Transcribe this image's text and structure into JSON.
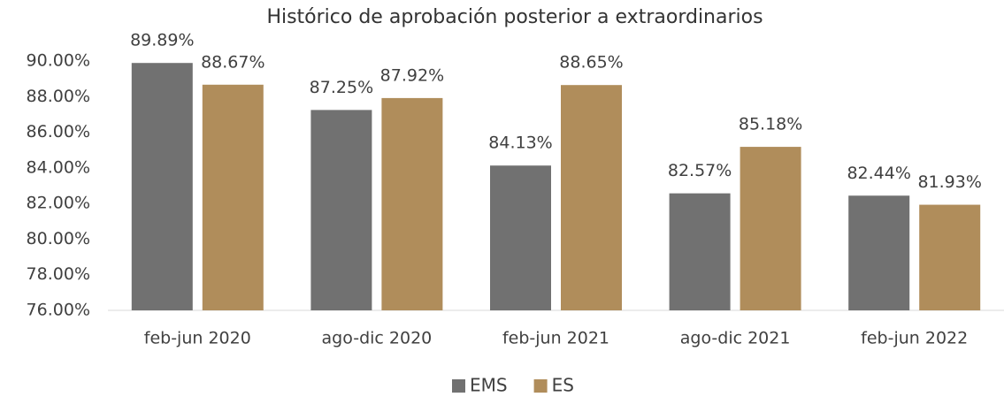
{
  "chart_data": {
    "type": "bar",
    "title": "Histórico de aprobación posterior a extraordinarios",
    "categories": [
      "feb-jun 2020",
      "ago-dic 2020",
      "feb-jun 2021",
      "ago-dic 2021",
      "feb-jun 2022"
    ],
    "series": [
      {
        "name": "EMS",
        "color": "#717171",
        "values": [
          89.89,
          87.25,
          84.13,
          82.57,
          82.44
        ],
        "value_labels": [
          "89.89%",
          "87.25%",
          "84.13%",
          "82.57%",
          "82.44%"
        ]
      },
      {
        "name": "ES",
        "color": "#b08d5b",
        "values": [
          88.67,
          87.92,
          88.65,
          85.18,
          81.93
        ],
        "value_labels": [
          "88.67%",
          "87.92%",
          "88.65%",
          "85.18%",
          "81.93%"
        ]
      }
    ],
    "ylim": [
      76,
      90
    ],
    "yticks": [
      {
        "value": 76,
        "label": "76.00%"
      },
      {
        "value": 78,
        "label": "78.00%"
      },
      {
        "value": 80,
        "label": "80.00%"
      },
      {
        "value": 82,
        "label": "82.00%"
      },
      {
        "value": 84,
        "label": "84.00%"
      },
      {
        "value": 86,
        "label": "86.00%"
      },
      {
        "value": 88,
        "label": "88.00%"
      },
      {
        "value": 90,
        "label": "90.00%"
      }
    ],
    "grid": false,
    "legend": "bottom"
  }
}
